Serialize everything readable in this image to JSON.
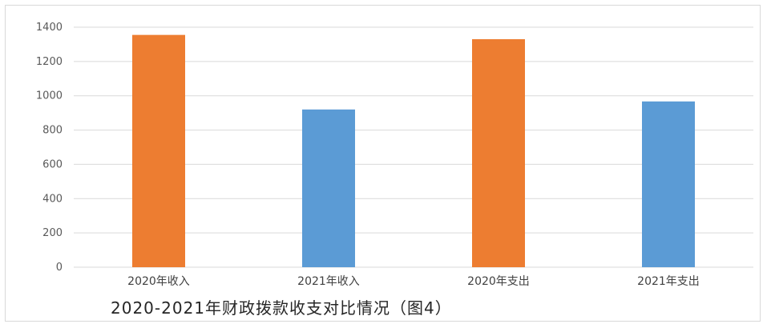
{
  "caption": "2020-2021年财政拨款收支对比情况（图4）",
  "chart_data": {
    "type": "bar",
    "categories": [
      "2020年收入",
      "2021年收入",
      "2020年支出",
      "2021年支出"
    ],
    "values": [
      1355,
      920,
      1330,
      967
    ],
    "bar_colors": [
      "#ed7d31",
      "#5b9bd5",
      "#ed7d31",
      "#5b9bd5"
    ],
    "ylim": [
      0,
      1400
    ],
    "yticks": [
      0,
      200,
      400,
      600,
      800,
      1000,
      1200,
      1400
    ],
    "grid": true
  }
}
